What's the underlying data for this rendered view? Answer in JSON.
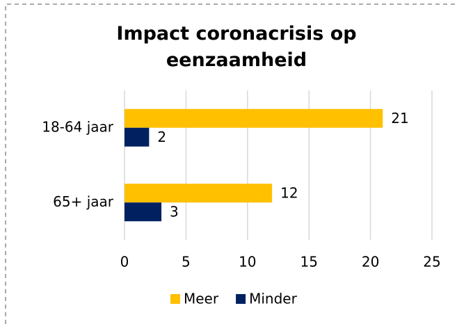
{
  "chart_data": {
    "type": "hbar",
    "title": "Impact coronacrisis op eenzaamheid",
    "categories": [
      "18-64 jaar",
      "65+ jaar"
    ],
    "series": [
      {
        "name": "Meer",
        "color": "#FFC000",
        "values": [
          21,
          12
        ]
      },
      {
        "name": "Minder",
        "color": "#002060",
        "values": [
          2,
          3
        ]
      }
    ],
    "xlim": [
      0,
      25
    ],
    "xticks": [
      0,
      5,
      10,
      15,
      20,
      25
    ],
    "grid": true,
    "legend": "bottom"
  }
}
